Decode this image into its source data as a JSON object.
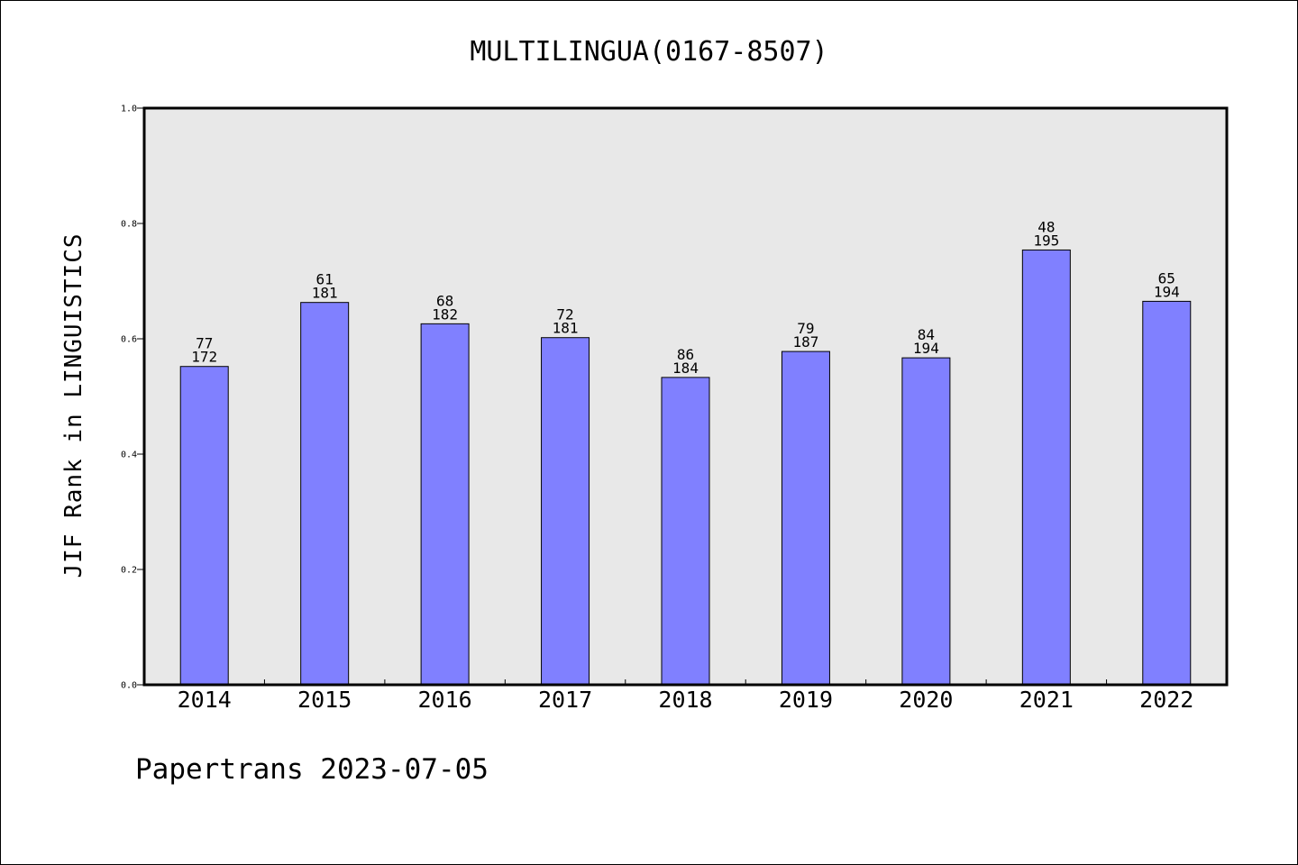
{
  "chart_data": {
    "type": "bar",
    "title": "MULTILINGUA(0167-8507)",
    "xlabel": "",
    "ylabel": "JIF Rank in LINGUISTICS",
    "ylim": [
      0,
      1.0
    ],
    "yticks": [
      "0.0",
      "0.2",
      "0.4",
      "0.6",
      "0.8",
      "1.0"
    ],
    "categories": [
      "2014",
      "2015",
      "2016",
      "2017",
      "2018",
      "2019",
      "2020",
      "2021",
      "2022"
    ],
    "values": [
      0.552,
      0.663,
      0.626,
      0.602,
      0.533,
      0.578,
      0.567,
      0.754,
      0.665
    ],
    "rank": [
      "77",
      "61",
      "68",
      "72",
      "86",
      "79",
      "84",
      "48",
      "65"
    ],
    "total": [
      "172",
      "181",
      "182",
      "181",
      "184",
      "187",
      "194",
      "195",
      "194"
    ],
    "grid": false,
    "legend": "none",
    "colors": {
      "bar_fill": "#8080ff",
      "plot_background": "#e8e8e8",
      "axis": "#000000"
    }
  },
  "footer": {
    "text": "Papertrans 2023-07-05"
  }
}
